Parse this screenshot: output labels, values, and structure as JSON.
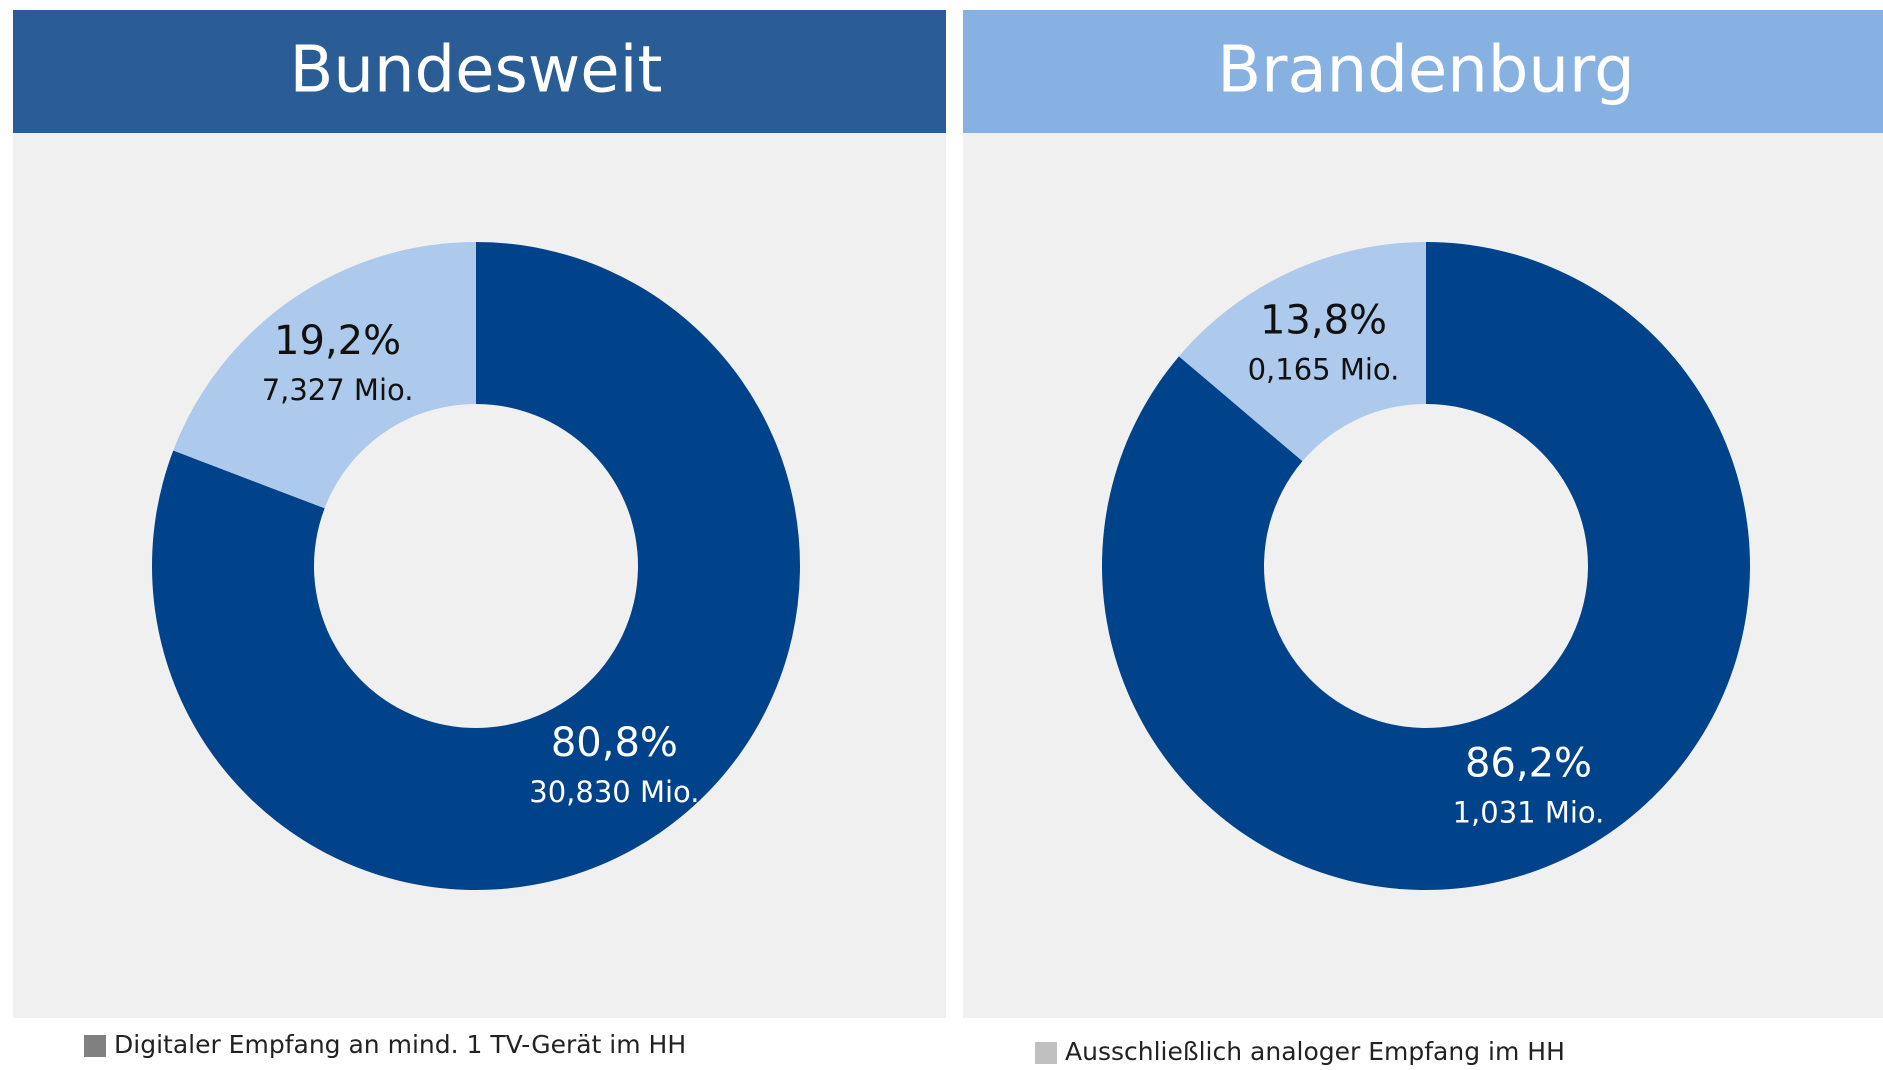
{
  "chart_data": [
    {
      "type": "pie",
      "title": "Bundesweit",
      "header_color": "#2a5d96",
      "values": [
        80.8,
        19.2
      ],
      "value_labels": [
        "80,8%",
        "19,2%"
      ],
      "sub_labels": [
        "30,830 Mio.",
        "7,327 Mio."
      ],
      "colors": [
        "#00438a",
        "#adc9eb"
      ],
      "label_colors": [
        "#ffffff",
        "#111111"
      ],
      "donut": true
    },
    {
      "type": "pie",
      "title": "Brandenburg",
      "header_color": "#86b1e1",
      "values": [
        86.2,
        13.8
      ],
      "value_labels": [
        "86,2%",
        "13,8%"
      ],
      "sub_labels": [
        "1,031 Mio.",
        "0,165 Mio."
      ],
      "colors": [
        "#00438a",
        "#adc9eb"
      ],
      "label_colors": [
        "#ffffff",
        "#111111"
      ],
      "donut": true
    }
  ],
  "legend": [
    {
      "name": "Digitaler Empfang an mind. 1 TV-Gerät im HH",
      "color": "#808080"
    },
    {
      "name": "Ausschließlich analoger Empfang im HH",
      "color": "#c0c0c0"
    }
  ]
}
